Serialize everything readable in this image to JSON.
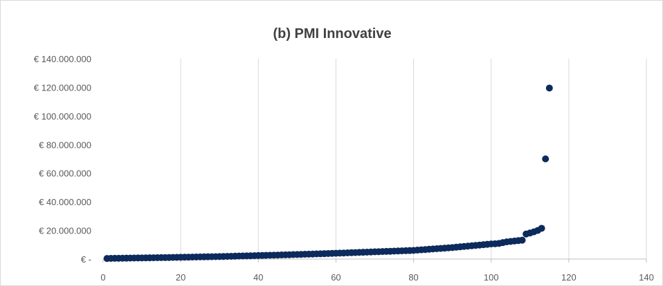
{
  "chart_data": {
    "type": "scatter",
    "title": "(b) PMI Innovative",
    "xlabel": "",
    "ylabel": "",
    "xlim": [
      0,
      140
    ],
    "ylim": [
      0,
      140000000
    ],
    "x_ticks": [
      0,
      20,
      40,
      60,
      80,
      100,
      120,
      140
    ],
    "x_tick_labels": [
      "0",
      "20",
      "40",
      "60",
      "80",
      "100",
      "120",
      "140"
    ],
    "y_ticks": [
      0,
      20000000,
      40000000,
      60000000,
      80000000,
      100000000,
      120000000,
      140000000
    ],
    "y_tick_labels": [
      "€ -",
      "€ 20.000.000",
      "€ 40.000.000",
      "€ 60.000.000",
      "€ 80.000.000",
      "€ 100.000.000",
      "€ 120.000.000",
      "€ 140.000.000"
    ],
    "grid": "vertical",
    "legend": "none",
    "marker_color": "#0d2a5c",
    "points": [
      [
        1,
        400000
      ],
      [
        2,
        480000
      ],
      [
        3,
        520000
      ],
      [
        4,
        560000
      ],
      [
        5,
        600000
      ],
      [
        6,
        640000
      ],
      [
        7,
        680000
      ],
      [
        8,
        720000
      ],
      [
        9,
        760000
      ],
      [
        10,
        800000
      ],
      [
        11,
        840000
      ],
      [
        12,
        880000
      ],
      [
        13,
        920000
      ],
      [
        14,
        960000
      ],
      [
        15,
        1000000
      ],
      [
        16,
        1050000
      ],
      [
        17,
        1100000
      ],
      [
        18,
        1150000
      ],
      [
        19,
        1200000
      ],
      [
        20,
        1250000
      ],
      [
        21,
        1300000
      ],
      [
        22,
        1350000
      ],
      [
        23,
        1400000
      ],
      [
        24,
        1450000
      ],
      [
        25,
        1500000
      ],
      [
        26,
        1550000
      ],
      [
        27,
        1600000
      ],
      [
        28,
        1650000
      ],
      [
        29,
        1700000
      ],
      [
        30,
        1750000
      ],
      [
        31,
        1820000
      ],
      [
        32,
        1890000
      ],
      [
        33,
        1960000
      ],
      [
        34,
        2030000
      ],
      [
        35,
        2100000
      ],
      [
        36,
        2170000
      ],
      [
        37,
        2240000
      ],
      [
        38,
        2310000
      ],
      [
        39,
        2380000
      ],
      [
        40,
        2450000
      ],
      [
        41,
        2520000
      ],
      [
        42,
        2590000
      ],
      [
        43,
        2660000
      ],
      [
        44,
        2730000
      ],
      [
        45,
        2800000
      ],
      [
        46,
        2880000
      ],
      [
        47,
        2960000
      ],
      [
        48,
        3040000
      ],
      [
        49,
        3120000
      ],
      [
        50,
        3200000
      ],
      [
        51,
        3280000
      ],
      [
        52,
        3360000
      ],
      [
        53,
        3440000
      ],
      [
        54,
        3520000
      ],
      [
        55,
        3600000
      ],
      [
        56,
        3690000
      ],
      [
        57,
        3780000
      ],
      [
        58,
        3870000
      ],
      [
        59,
        3960000
      ],
      [
        60,
        4050000
      ],
      [
        61,
        4150000
      ],
      [
        62,
        4250000
      ],
      [
        63,
        4350000
      ],
      [
        64,
        4450000
      ],
      [
        65,
        4550000
      ],
      [
        66,
        4650000
      ],
      [
        67,
        4750000
      ],
      [
        68,
        4850000
      ],
      [
        69,
        4950000
      ],
      [
        70,
        5050000
      ],
      [
        71,
        5150000
      ],
      [
        72,
        5250000
      ],
      [
        73,
        5350000
      ],
      [
        74,
        5450000
      ],
      [
        75,
        5550000
      ],
      [
        76,
        5650000
      ],
      [
        77,
        5750000
      ],
      [
        78,
        5850000
      ],
      [
        79,
        5950000
      ],
      [
        80,
        6050000
      ],
      [
        81,
        6250000
      ],
      [
        82,
        6450000
      ],
      [
        83,
        6650000
      ],
      [
        84,
        6850000
      ],
      [
        85,
        7050000
      ],
      [
        86,
        7250000
      ],
      [
        87,
        7450000
      ],
      [
        88,
        7650000
      ],
      [
        89,
        7850000
      ],
      [
        90,
        8050000
      ],
      [
        91,
        8300000
      ],
      [
        92,
        8550000
      ],
      [
        93,
        8800000
      ],
      [
        94,
        9050000
      ],
      [
        95,
        9300000
      ],
      [
        96,
        9550000
      ],
      [
        97,
        9800000
      ],
      [
        98,
        10050000
      ],
      [
        99,
        10300000
      ],
      [
        100,
        10550000
      ],
      [
        101,
        10700000
      ],
      [
        102,
        10900000
      ],
      [
        103,
        11500000
      ],
      [
        104,
        12000000
      ],
      [
        105,
        12300000
      ],
      [
        106,
        12600000
      ],
      [
        107,
        12900000
      ],
      [
        108,
        13200000
      ],
      [
        109,
        17500000
      ],
      [
        110,
        18200000
      ],
      [
        111,
        19000000
      ],
      [
        112,
        20000000
      ],
      [
        113,
        21500000
      ],
      [
        114,
        70000000
      ],
      [
        115,
        119500000
      ]
    ]
  }
}
